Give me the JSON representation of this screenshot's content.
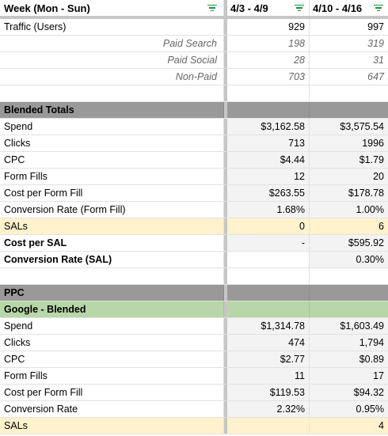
{
  "header": {
    "label": "Week (Mon - Sun)",
    "col1": "4/3 - 4/9",
    "col2": "4/10 - 4/16"
  },
  "rows": [
    {
      "label": "Traffic (Users)",
      "v1": "929",
      "v2": "997"
    },
    {
      "label": "Paid Search",
      "v1": "198",
      "v2": "319"
    },
    {
      "label": "Paid Social",
      "v1": "28",
      "v2": "31"
    },
    {
      "label": "Non-Paid",
      "v1": "703",
      "v2": "647"
    },
    {
      "label": "",
      "v1": "",
      "v2": ""
    },
    {
      "label": "Blended Totals",
      "v1": "",
      "v2": ""
    },
    {
      "label": "Spend",
      "v1": "$3,162.58",
      "v2": "$3,575.54"
    },
    {
      "label": "Clicks",
      "v1": "713",
      "v2": "1996"
    },
    {
      "label": "CPC",
      "v1": "$4.44",
      "v2": "$1.79"
    },
    {
      "label": "Form Fills",
      "v1": "12",
      "v2": "20"
    },
    {
      "label": "Cost per Form Fill",
      "v1": "$263.55",
      "v2": "$178.78"
    },
    {
      "label": "Conversion Rate (Form Fill)",
      "v1": "1.68%",
      "v2": "1.00%"
    },
    {
      "label": "SALs",
      "v1": "0",
      "v2": "6"
    },
    {
      "label": "Cost per SAL",
      "v1": "-",
      "v2": "$595.92"
    },
    {
      "label": "Conversion Rate (SAL)",
      "v1": "",
      "v2": "0.30%"
    },
    {
      "label": "",
      "v1": "",
      "v2": ""
    },
    {
      "label": "PPC",
      "v1": "",
      "v2": ""
    },
    {
      "label": "Google - Blended",
      "v1": "",
      "v2": ""
    },
    {
      "label": "Spend",
      "v1": "$1,314.78",
      "v2": "$1,603.49"
    },
    {
      "label": "Clicks",
      "v1": "474",
      "v2": "1,794"
    },
    {
      "label": "CPC",
      "v1": "$2.77",
      "v2": "$0.89"
    },
    {
      "label": "Form Fills",
      "v1": "11",
      "v2": "17"
    },
    {
      "label": "Cost per Form Fill",
      "v1": "$119.53",
      "v2": "$94.32"
    },
    {
      "label": "Conversion Rate",
      "v1": "2.32%",
      "v2": "0.95%"
    },
    {
      "label": "SALs",
      "v1": "",
      "v2": "4"
    }
  ],
  "icons": {
    "filter": "filter-icon"
  },
  "colors": {
    "section": "#999999",
    "green": "#b7d7a8",
    "yellow": "#fff2cc",
    "filter": "#1e8e3e"
  }
}
